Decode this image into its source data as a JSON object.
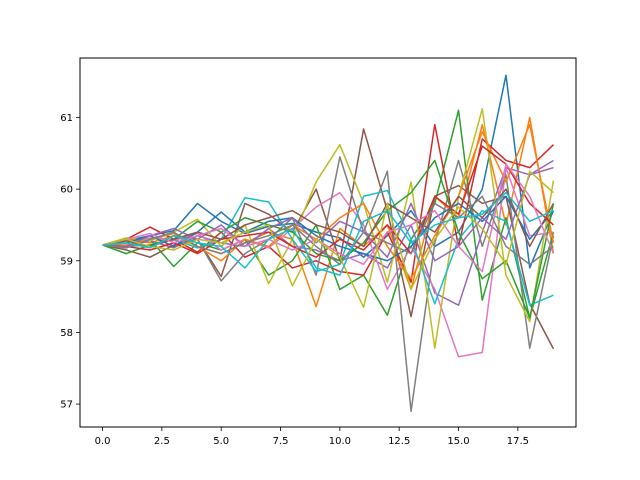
{
  "chart_data": {
    "type": "line",
    "title": "",
    "xlabel": "",
    "ylabel": "",
    "xlim": [
      -0.95,
      19.95
    ],
    "ylim": [
      56.68,
      61.83
    ],
    "x_ticks": [
      0,
      2.5,
      5,
      7.5,
      10,
      12.5,
      15,
      17.5
    ],
    "x_tick_labels": [
      "0.0",
      "2.5",
      "5.0",
      "7.5",
      "10.0",
      "12.5",
      "15.0",
      "17.5"
    ],
    "y_ticks": [
      57,
      58,
      59,
      60,
      61
    ],
    "y_tick_labels": [
      "57",
      "58",
      "59",
      "60",
      "61"
    ],
    "grid": false,
    "legend": "none",
    "x": [
      0,
      1,
      2,
      3,
      4,
      5,
      6,
      7,
      8,
      9,
      10,
      11,
      12,
      13,
      14,
      15,
      16,
      17,
      18,
      19
    ],
    "series": [
      {
        "color": "#1f77b4",
        "values": [
          59.22,
          59.28,
          59.35,
          59.42,
          59.8,
          59.55,
          59.38,
          59.48,
          59.52,
          59.4,
          59.32,
          59.05,
          59.35,
          59.7,
          59.2,
          59.4,
          60.0,
          61.59,
          58.9,
          59.7
        ]
      },
      {
        "color": "#ff7f0e",
        "values": [
          59.22,
          59.3,
          59.25,
          59.35,
          59.2,
          59.1,
          59.25,
          59.4,
          59.3,
          58.36,
          59.45,
          59.2,
          59.5,
          58.6,
          59.9,
          59.6,
          60.9,
          59.5,
          61.0,
          59.1
        ]
      },
      {
        "color": "#2ca02c",
        "values": [
          59.22,
          59.18,
          59.3,
          58.92,
          59.25,
          59.15,
          59.3,
          58.8,
          59.0,
          59.5,
          58.6,
          58.8,
          58.24,
          59.3,
          59.8,
          61.1,
          58.45,
          59.6,
          58.2,
          59.4
        ]
      },
      {
        "color": "#d62728",
        "values": [
          59.22,
          59.3,
          59.47,
          59.3,
          59.12,
          59.4,
          59.05,
          59.2,
          58.9,
          59.0,
          58.85,
          58.8,
          59.4,
          58.7,
          60.9,
          59.2,
          60.7,
          60.4,
          60.3,
          60.62
        ]
      },
      {
        "color": "#9467bd",
        "values": [
          59.22,
          59.2,
          59.28,
          59.18,
          59.35,
          59.25,
          59.2,
          59.45,
          59.2,
          59.15,
          59.0,
          59.1,
          58.9,
          59.5,
          58.55,
          58.38,
          59.4,
          60.3,
          60.2,
          60.4
        ]
      },
      {
        "color": "#8c564b",
        "values": [
          59.22,
          59.15,
          59.05,
          59.22,
          59.3,
          58.78,
          59.8,
          59.65,
          59.4,
          60.0,
          59.0,
          60.84,
          59.7,
          58.22,
          59.9,
          60.05,
          59.8,
          59.9,
          58.4,
          57.77
        ]
      },
      {
        "color": "#e377c2",
        "values": [
          59.22,
          59.25,
          59.32,
          59.28,
          59.38,
          59.15,
          59.3,
          59.18,
          59.45,
          59.75,
          59.95,
          59.5,
          58.6,
          59.2,
          58.6,
          57.66,
          57.72,
          60.3,
          59.35,
          59.4
        ]
      },
      {
        "color": "#7f7f7f",
        "values": [
          59.22,
          59.28,
          59.2,
          59.35,
          59.3,
          58.72,
          59.1,
          59.3,
          59.6,
          58.8,
          60.45,
          59.4,
          60.25,
          56.9,
          59.25,
          60.4,
          59.2,
          60.2,
          57.78,
          59.35
        ]
      },
      {
        "color": "#bcbd22",
        "values": [
          59.22,
          59.32,
          59.28,
          59.4,
          59.58,
          59.2,
          59.5,
          58.68,
          59.3,
          60.1,
          60.62,
          59.8,
          58.7,
          60.1,
          57.78,
          59.9,
          61.12,
          58.8,
          58.15,
          60.12
        ]
      },
      {
        "color": "#17becf",
        "values": [
          59.22,
          59.2,
          59.22,
          59.3,
          59.18,
          59.3,
          59.88,
          59.82,
          59.3,
          58.85,
          58.95,
          59.9,
          59.98,
          59.3,
          58.4,
          59.3,
          59.7,
          59.55,
          58.38,
          58.52
        ]
      },
      {
        "color": "#1f77b4",
        "values": [
          59.22,
          59.25,
          59.35,
          59.2,
          59.4,
          59.68,
          59.4,
          59.55,
          59.6,
          59.35,
          59.2,
          59.1,
          59.0,
          59.2,
          59.6,
          59.8,
          59.55,
          59.9,
          59.3,
          59.7
        ]
      },
      {
        "color": "#ff7f0e",
        "values": [
          59.22,
          59.22,
          59.3,
          59.38,
          59.2,
          59.0,
          59.3,
          59.2,
          59.5,
          59.3,
          59.6,
          59.8,
          59.2,
          58.75,
          59.35,
          59.9,
          60.8,
          60.1,
          60.9,
          59.25
        ]
      },
      {
        "color": "#2ca02c",
        "values": [
          59.22,
          59.1,
          59.22,
          59.3,
          59.55,
          59.4,
          59.6,
          59.5,
          59.4,
          59.1,
          59.0,
          59.25,
          59.7,
          59.95,
          60.4,
          59.4,
          58.75,
          59.0,
          58.2,
          59.8
        ]
      },
      {
        "color": "#d62728",
        "values": [
          59.22,
          59.2,
          59.15,
          59.25,
          59.1,
          59.3,
          59.35,
          59.4,
          59.2,
          59.05,
          59.3,
          59.15,
          59.5,
          59.1,
          59.9,
          59.65,
          60.6,
          60.35,
          59.8,
          59.5
        ]
      },
      {
        "color": "#9467bd",
        "values": [
          59.22,
          59.2,
          59.35,
          59.45,
          59.3,
          59.5,
          59.2,
          59.45,
          59.6,
          59.25,
          59.55,
          59.4,
          59.05,
          59.8,
          59.0,
          59.2,
          59.6,
          59.3,
          60.2,
          60.3
        ]
      },
      {
        "color": "#8c564b",
        "values": [
          59.22,
          59.28,
          59.2,
          59.3,
          59.4,
          59.3,
          59.5,
          59.6,
          59.7,
          59.5,
          59.4,
          59.2,
          59.8,
          59.6,
          59.4,
          59.9,
          59.6,
          60.0,
          59.2,
          59.8
        ]
      },
      {
        "color": "#e377c2",
        "values": [
          59.22,
          59.3,
          59.38,
          59.25,
          59.35,
          59.45,
          59.2,
          59.3,
          59.15,
          59.3,
          59.1,
          58.95,
          59.4,
          59.5,
          59.7,
          59.2,
          58.85,
          60.35,
          59.9,
          59.1
        ]
      },
      {
        "color": "#7f7f7f",
        "values": [
          59.22,
          59.18,
          59.3,
          59.4,
          59.2,
          59.1,
          59.25,
          59.35,
          59.5,
          59.2,
          58.95,
          59.4,
          59.25,
          59.1,
          59.8,
          59.6,
          59.9,
          59.2,
          58.95,
          59.2
        ]
      },
      {
        "color": "#bcbd22",
        "values": [
          59.22,
          59.3,
          59.2,
          59.15,
          59.3,
          59.25,
          59.4,
          59.5,
          58.65,
          59.3,
          59.05,
          58.35,
          59.8,
          58.6,
          59.3,
          59.75,
          59.45,
          58.95,
          60.25,
          59.95
        ]
      },
      {
        "color": "#17becf",
        "values": [
          59.22,
          59.25,
          59.18,
          59.35,
          59.25,
          59.2,
          58.9,
          59.3,
          59.45,
          58.9,
          58.8,
          59.55,
          59.7,
          59.25,
          59.5,
          59.6,
          59.65,
          59.95,
          59.55,
          59.7
        ]
      }
    ]
  }
}
